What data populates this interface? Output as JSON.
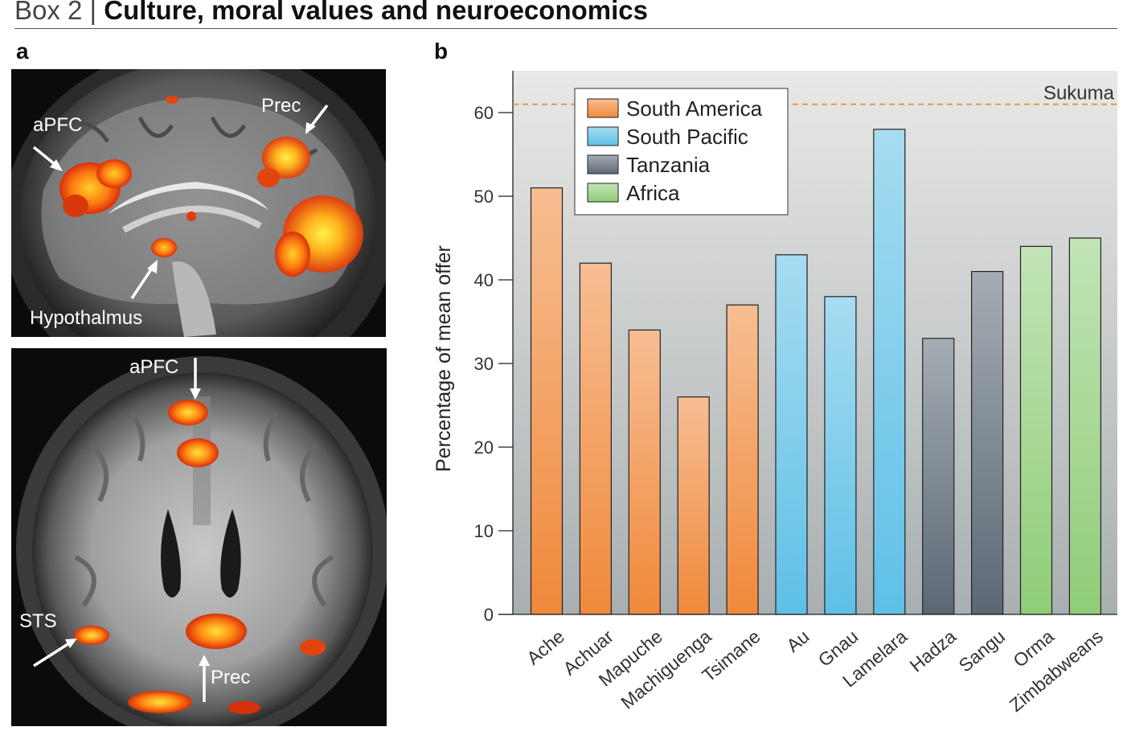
{
  "header": {
    "prefix": "Box 2 | ",
    "title": "Culture, moral values and neuroeconomics"
  },
  "panel_a": {
    "letter": "a",
    "sagittal_labels": [
      "aPFC",
      "Prec",
      "Hypothalmus"
    ],
    "axial_labels": [
      "aPFC",
      "STS",
      "Prec"
    ]
  },
  "panel_b": {
    "letter": "b"
  },
  "colors": {
    "south_america": "#f0893a",
    "south_pacific": "#5ec0e6",
    "tanzania": "#5b6874",
    "africa": "#8fcd78",
    "reference": "#e98a3c"
  },
  "chart_data": {
    "type": "bar",
    "categories": [
      "Ache",
      "Achuar",
      "Mapuche",
      "Machiguenga",
      "Tsimane",
      "Au",
      "Gnau",
      "Lamelara",
      "Hadza",
      "Sangu",
      "Orma",
      "Zimbabweans"
    ],
    "values": [
      51,
      42,
      34,
      26,
      37,
      43,
      38,
      58,
      33,
      41,
      44,
      45
    ],
    "groups": [
      "South America",
      "South America",
      "South America",
      "South America",
      "South America",
      "South Pacific",
      "South Pacific",
      "South Pacific",
      "Tanzania",
      "Tanzania",
      "Africa",
      "Africa"
    ],
    "legend": [
      "South America",
      "South Pacific",
      "Tanzania",
      "Africa"
    ],
    "legend_position": "top-left",
    "ylabel": "Percentage of mean offer",
    "xlabel": "",
    "ylim": [
      0,
      65
    ],
    "yticks": [
      0,
      10,
      20,
      30,
      40,
      50,
      60
    ],
    "reference_line": {
      "label": "Sukuma",
      "value": 61
    },
    "grid": false
  }
}
